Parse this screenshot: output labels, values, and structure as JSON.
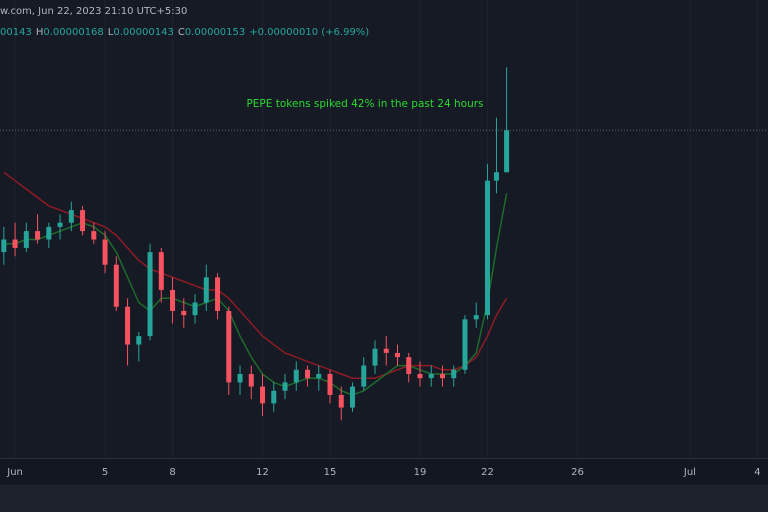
{
  "header": {
    "title": "w.com, Jun 22, 2023 21:10 UTC+5:30",
    "ohlc": [
      {
        "value": "00143"
      },
      {
        "label": "H",
        "value": "0.00000168"
      },
      {
        "label": "L",
        "value": "0.00000143"
      },
      {
        "label": "C",
        "value": "0.00000153"
      },
      {
        "value": "+0.00000010 (+6.99%)"
      }
    ]
  },
  "chart_data": {
    "type": "candlestick",
    "annotation": "PEPE tokens spiked 42% in the past 24 hours",
    "x": [
      0.5,
      1,
      1.5,
      2,
      2.5,
      3,
      3.5,
      4,
      4.5,
      5,
      5.5,
      6,
      6.5,
      7,
      7.5,
      8,
      8.5,
      9,
      9.5,
      10,
      10.5,
      11,
      11.5,
      12,
      12.5,
      13,
      13.5,
      14,
      14.5,
      15,
      15.5,
      16,
      16.5,
      17,
      17.5,
      18,
      18.5,
      19,
      19.5,
      20,
      20.5,
      21,
      21.5,
      22,
      22.4,
      22.85
    ],
    "open": [
      1.24e-06,
      1.27e-06,
      1.25e-06,
      1.29e-06,
      1.27e-06,
      1.3e-06,
      1.31e-06,
      1.34e-06,
      1.29e-06,
      1.27e-06,
      1.21e-06,
      1.11e-06,
      1.02e-06,
      1.04e-06,
      1.24e-06,
      1.15e-06,
      1.1e-06,
      1.09e-06,
      1.12e-06,
      1.18e-06,
      1.1e-06,
      9.3e-07,
      9.5e-07,
      9.2e-07,
      8.8e-07,
      9.1e-07,
      9.3e-07,
      9.6e-07,
      9.4e-07,
      9.5e-07,
      9e-07,
      8.7e-07,
      9.2e-07,
      9.7e-07,
      1.01e-06,
      1e-06,
      9.9e-07,
      9.5e-07,
      9.4e-07,
      9.5e-07,
      9.4e-07,
      9.6e-07,
      1.08e-06,
      1.09e-06,
      1.41e-06,
      1.43e-06
    ],
    "high": [
      1.3e-06,
      1.31e-06,
      1.31e-06,
      1.33e-06,
      1.31e-06,
      1.33e-06,
      1.36e-06,
      1.35e-06,
      1.31e-06,
      1.29e-06,
      1.23e-06,
      1.13e-06,
      1.05e-06,
      1.26e-06,
      1.25e-06,
      1.18e-06,
      1.13e-06,
      1.14e-06,
      1.21e-06,
      1.19e-06,
      1.11e-06,
      9.7e-07,
      9.7e-07,
      9.5e-07,
      9.3e-07,
      9.5e-07,
      9.8e-07,
      9.7e-07,
      9.7e-07,
      9.6e-07,
      9.2e-07,
      9.3e-07,
      9.9e-07,
      1.03e-06,
      1.04e-06,
      1.02e-06,
      1e-06,
      9.8e-07,
      9.7e-07,
      9.7e-07,
      9.7e-07,
      1.09e-06,
      1.12e-06,
      1.45e-06,
      1.56e-06,
      1.68e-06
    ],
    "low": [
      1.21e-06,
      1.23e-06,
      1.24e-06,
      1.26e-06,
      1.25e-06,
      1.27e-06,
      1.29e-06,
      1.28e-06,
      1.26e-06,
      1.19e-06,
      1.1e-06,
      9.7e-07,
      9.8e-07,
      1.03e-06,
      1.12e-06,
      1.07e-06,
      1.06e-06,
      1.07e-06,
      1.1e-06,
      1.08e-06,
      9e-07,
      9e-07,
      8.9e-07,
      8.5e-07,
      8.6e-07,
      8.9e-07,
      9.1e-07,
      9.2e-07,
      9.1e-07,
      8.8e-07,
      8.4e-07,
      8.6e-07,
      9.1e-07,
      9.5e-07,
      9.7e-07,
      9.7e-07,
      9.3e-07,
      9.2e-07,
      9.2e-07,
      9.2e-07,
      9.2e-07,
      9.5e-07,
      1.06e-06,
      1.08e-06,
      1.38e-06,
      1.43e-06
    ],
    "close": [
      1.27e-06,
      1.25e-06,
      1.29e-06,
      1.27e-06,
      1.3e-06,
      1.31e-06,
      1.34e-06,
      1.29e-06,
      1.27e-06,
      1.21e-06,
      1.11e-06,
      1.02e-06,
      1.04e-06,
      1.24e-06,
      1.15e-06,
      1.1e-06,
      1.09e-06,
      1.12e-06,
      1.18e-06,
      1.1e-06,
      9.3e-07,
      9.5e-07,
      9.2e-07,
      8.8e-07,
      9.1e-07,
      9.3e-07,
      9.6e-07,
      9.4e-07,
      9.5e-07,
      9e-07,
      8.7e-07,
      9.2e-07,
      9.7e-07,
      1.01e-06,
      1e-06,
      9.9e-07,
      9.5e-07,
      9.4e-07,
      9.5e-07,
      9.4e-07,
      9.6e-07,
      1.08e-06,
      1.09e-06,
      1.41e-06,
      1.43e-06,
      1.53e-06
    ],
    "up_color": "#26a69a",
    "down_color": "#f7525f",
    "lines": [
      {
        "color": "#8e1b24",
        "values": [
          1.43e-06,
          1.41e-06,
          1.39e-06,
          1.37e-06,
          1.35e-06,
          1.34e-06,
          1.33e-06,
          1.32e-06,
          1.31e-06,
          1.3e-06,
          1.28e-06,
          1.25e-06,
          1.22e-06,
          1.2e-06,
          1.19e-06,
          1.18e-06,
          1.17e-06,
          1.16e-06,
          1.15e-06,
          1.15e-06,
          1.13e-06,
          1.1e-06,
          1.07e-06,
          1.04e-06,
          1.02e-06,
          1e-06,
          9.9e-07,
          9.8e-07,
          9.7e-07,
          9.6e-07,
          9.5e-07,
          9.4e-07,
          9.4e-07,
          9.4e-07,
          9.5e-07,
          9.6e-07,
          9.7e-07,
          9.7e-07,
          9.7e-07,
          9.6e-07,
          9.6e-07,
          9.7e-07,
          9.9e-07,
          1.04e-06,
          1.09e-06,
          1.13e-06
        ]
      },
      {
        "color": "#1d6b2a",
        "values": [
          1.26e-06,
          1.26e-06,
          1.27e-06,
          1.27e-06,
          1.28e-06,
          1.29e-06,
          1.3e-06,
          1.31e-06,
          1.3e-06,
          1.28e-06,
          1.24e-06,
          1.18e-06,
          1.12e-06,
          1.1e-06,
          1.13e-06,
          1.13e-06,
          1.12e-06,
          1.11e-06,
          1.12e-06,
          1.13e-06,
          1.1e-06,
          1.04e-06,
          9.9e-07,
          9.5e-07,
          9.3e-07,
          9.2e-07,
          9.3e-07,
          9.4e-07,
          9.4e-07,
          9.3e-07,
          9.1e-07,
          9e-07,
          9.1e-07,
          9.3e-07,
          9.5e-07,
          9.7e-07,
          9.7e-07,
          9.6e-07,
          9.5e-07,
          9.5e-07,
          9.5e-07,
          9.7e-07,
          1e-06,
          1.12e-06,
          1.25e-06,
          1.38e-06
        ]
      }
    ],
    "xlim": [
      0.33,
      34.47
    ],
    "ylim": [
      7.5e-07,
      1.84e-06
    ],
    "xticks": [
      {
        "value": 1,
        "label": "Jun"
      },
      5,
      8,
      12,
      15,
      19,
      22,
      26,
      {
        "value": 31,
        "label": "Jul"
      },
      {
        "value": 34,
        "label": "4"
      }
    ],
    "grid": true,
    "last_price_line": true,
    "annotation_color": "#2bd92f"
  }
}
